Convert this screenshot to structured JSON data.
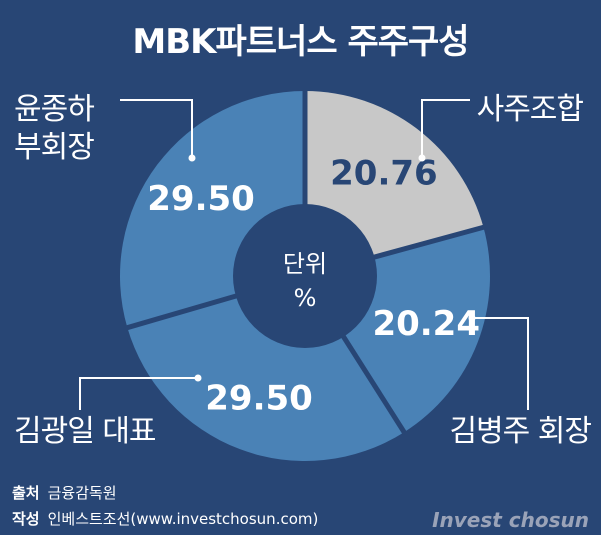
{
  "chart_data": {
    "type": "pie",
    "title": "MBK파트너스 주주구성",
    "center_label": [
      "단위",
      "%"
    ],
    "slices": [
      {
        "label": "사주조합",
        "value": 20.76,
        "value_label": "20.76",
        "color": "#c8c8c8",
        "value_color": "#284675"
      },
      {
        "label": "김병주 회장",
        "value": 20.24,
        "value_label": "20.24",
        "color": "#4a82b6",
        "value_color": "#ffffff"
      },
      {
        "label": "김광일 대표",
        "value": 29.5,
        "value_label": "29.50",
        "color": "#4a82b6",
        "value_color": "#ffffff"
      },
      {
        "label": "윤종하 부회장",
        "value": 29.5,
        "value_label": "29.50",
        "color": "#4a82b6",
        "value_color": "#ffffff"
      }
    ]
  },
  "labels": {
    "s0": "사주조합",
    "s1": "김병주 회장",
    "s2": "김광일 대표",
    "s3_line1": "윤종하",
    "s3_line2": "부회장"
  },
  "footer": {
    "source_key": "출처",
    "source_value": "금융감독원",
    "author_key": "작성",
    "author_value": "인베스트조선(www.investchosun.com)"
  },
  "brand": "Invest chosun"
}
